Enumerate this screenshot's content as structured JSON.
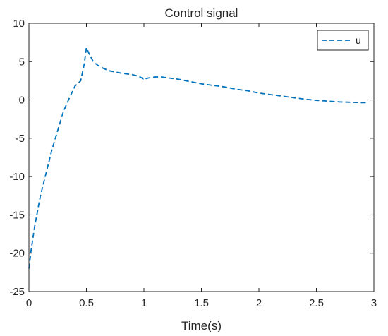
{
  "chart_data": {
    "type": "line",
    "title": "Control signal",
    "xlabel": "Time(s)",
    "ylabel": "",
    "xlim": [
      0,
      3
    ],
    "ylim": [
      -25,
      10
    ],
    "xticks": [
      0,
      0.5,
      1,
      1.5,
      2,
      2.5,
      3
    ],
    "xtick_labels": [
      "0",
      "0.5",
      "1",
      "1.5",
      "2",
      "2.5",
      "3"
    ],
    "yticks": [
      -25,
      -20,
      -15,
      -10,
      -5,
      0,
      5,
      10
    ],
    "ytick_labels": [
      "-25",
      "-20",
      "-15",
      "-10",
      "-5",
      "0",
      "5",
      "10"
    ],
    "grid": false,
    "legend_position": "top-right",
    "series": [
      {
        "name": "u",
        "color": "#0072BD",
        "style": "dashed",
        "x": [
          0,
          0.02,
          0.05,
          0.1,
          0.15,
          0.2,
          0.25,
          0.3,
          0.35,
          0.4,
          0.45,
          0.48,
          0.5,
          0.53,
          0.56,
          0.6,
          0.65,
          0.7,
          0.8,
          0.9,
          0.95,
          0.98,
          1.0,
          1.02,
          1.05,
          1.1,
          1.15,
          1.2,
          1.3,
          1.4,
          1.5,
          1.6,
          1.7,
          1.8,
          1.9,
          2.0,
          2.1,
          2.2,
          2.3,
          2.4,
          2.5,
          2.6,
          2.7,
          2.8,
          2.9,
          2.95
        ],
        "y": [
          -22,
          -19.5,
          -16.5,
          -12.5,
          -9.5,
          -6.5,
          -4,
          -1.5,
          0.2,
          1.8,
          2.5,
          4.6,
          6.8,
          5.8,
          5.0,
          4.5,
          4.1,
          3.8,
          3.5,
          3.3,
          3.1,
          2.9,
          2.6,
          2.8,
          2.9,
          3.0,
          3.0,
          2.9,
          2.7,
          2.4,
          2.1,
          1.9,
          1.7,
          1.4,
          1.2,
          0.9,
          0.7,
          0.5,
          0.3,
          0.1,
          -0.05,
          -0.15,
          -0.25,
          -0.3,
          -0.35,
          -0.35
        ]
      }
    ]
  }
}
